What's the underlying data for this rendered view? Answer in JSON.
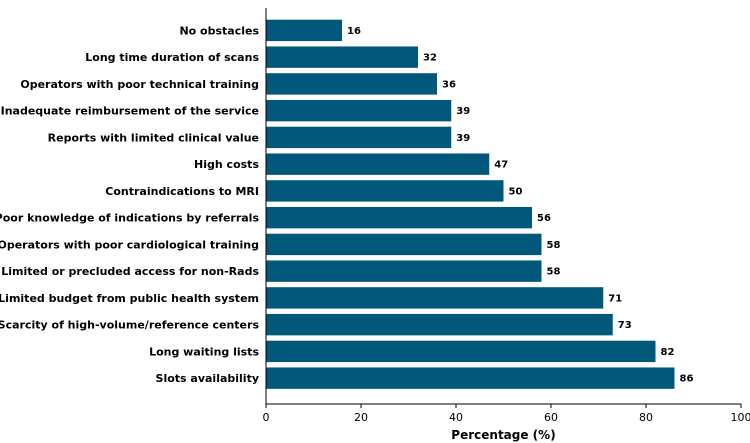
{
  "chart_data": {
    "type": "bar",
    "orientation": "horizontal",
    "categories": [
      "No obstacles",
      "Long time duration of scans",
      "Operators with poor technical training",
      "Inadequate reimbursement of the service",
      "Reports with limited clinical value",
      "High costs",
      "Contraindications to MRI",
      "Poor knowledge of indications by referrals",
      "Operators with poor cardiological training",
      "Limited or precluded access for non-Rads",
      "Limited budget from public health system",
      "Scarcity of high-volume/reference centers",
      "Long waiting lists",
      "Slots availability"
    ],
    "values": [
      16,
      32,
      36,
      39,
      39,
      47,
      50,
      56,
      58,
      58,
      71,
      73,
      82,
      86
    ],
    "value_labels": [
      "16",
      "32",
      "36",
      "39",
      "39",
      "47",
      "50",
      "56",
      "58",
      "58",
      "71",
      "73",
      "82",
      "86"
    ],
    "xlabel": "Percentage (%)",
    "ylabel": "",
    "xlim": [
      0,
      100
    ],
    "xticks": [
      0,
      20,
      40,
      60,
      80,
      100
    ],
    "xtick_labels": [
      "0",
      "20",
      "40",
      "60",
      "80",
      "100"
    ],
    "bar_color": "#02587a",
    "grid": false,
    "legend": "none"
  }
}
